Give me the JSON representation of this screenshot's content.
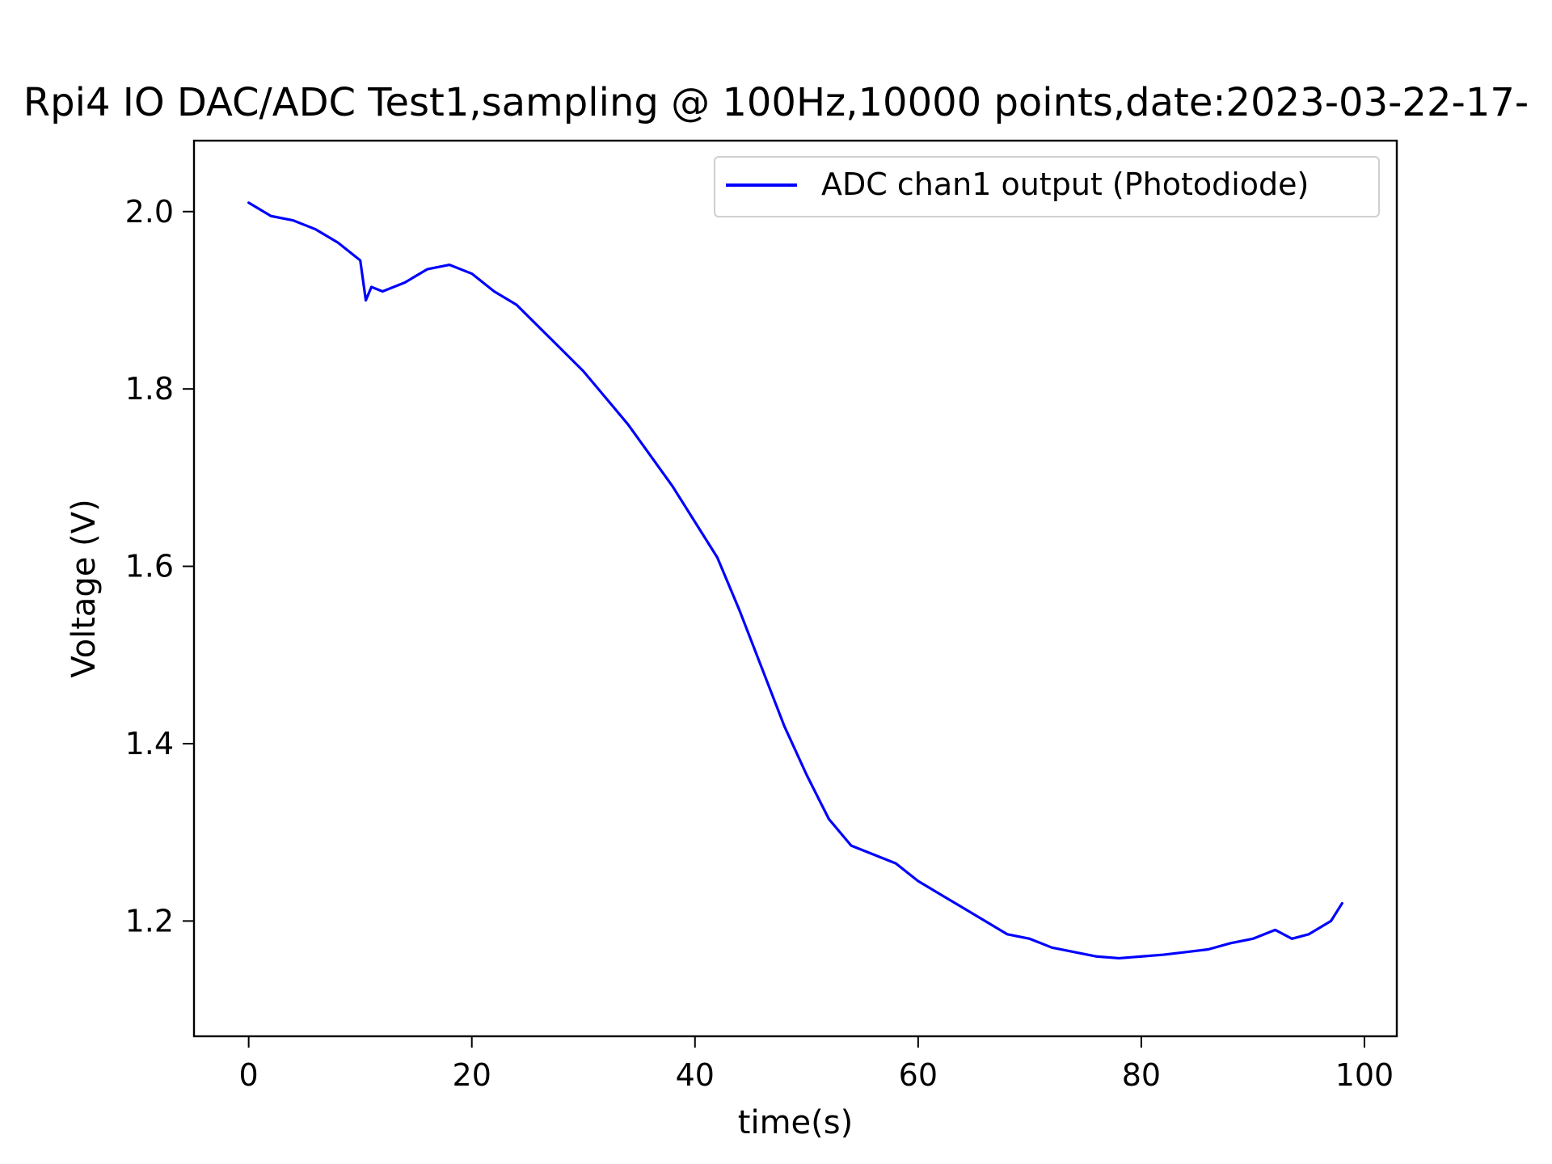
{
  "chart_data": {
    "type": "line",
    "title": "Rpi4 IO DAC/ADC Test1,sampling @ 100Hz,10000 points,date:2023-03-22-17-",
    "xlabel": "time(s)",
    "ylabel": "Voltage (V)",
    "xlim": [
      -4.9,
      102.9
    ],
    "ylim": [
      1.07,
      2.08
    ],
    "xticks": [
      0,
      20,
      40,
      60,
      80,
      100
    ],
    "xtick_labels": [
      "0",
      "20",
      "40",
      "60",
      "80",
      "100"
    ],
    "yticks": [
      1.2,
      1.4,
      1.6,
      1.8,
      2.0
    ],
    "ytick_labels": [
      "1.2",
      "1.4",
      "1.6",
      "1.8",
      "2.0"
    ],
    "grid": false,
    "legend_position": "upper right",
    "series": [
      {
        "name": "ADC chan1 output  (Photodiode)",
        "color": "#0000ff",
        "x": [
          0,
          2,
          4,
          6,
          8,
          10,
          10.5,
          11,
          12,
          14,
          16,
          18,
          20,
          22,
          24,
          26,
          28,
          30,
          32,
          34,
          36,
          38,
          40,
          42,
          44,
          46,
          48,
          50,
          52,
          54,
          56,
          58,
          60,
          62,
          64,
          66,
          68,
          70,
          72,
          74,
          76,
          78,
          80,
          82,
          84,
          86,
          88,
          90,
          92,
          93.5,
          95,
          97,
          98
        ],
        "y": [
          2.01,
          1.995,
          1.99,
          1.98,
          1.965,
          1.945,
          1.9,
          1.915,
          1.91,
          1.92,
          1.935,
          1.94,
          1.93,
          1.91,
          1.895,
          1.87,
          1.845,
          1.82,
          1.79,
          1.76,
          1.725,
          1.69,
          1.65,
          1.61,
          1.55,
          1.485,
          1.42,
          1.365,
          1.315,
          1.285,
          1.275,
          1.265,
          1.245,
          1.23,
          1.215,
          1.2,
          1.185,
          1.18,
          1.17,
          1.165,
          1.16,
          1.158,
          1.16,
          1.162,
          1.165,
          1.168,
          1.175,
          1.18,
          1.19,
          1.18,
          1.185,
          1.2,
          1.22
        ]
      }
    ],
    "annotations": []
  }
}
